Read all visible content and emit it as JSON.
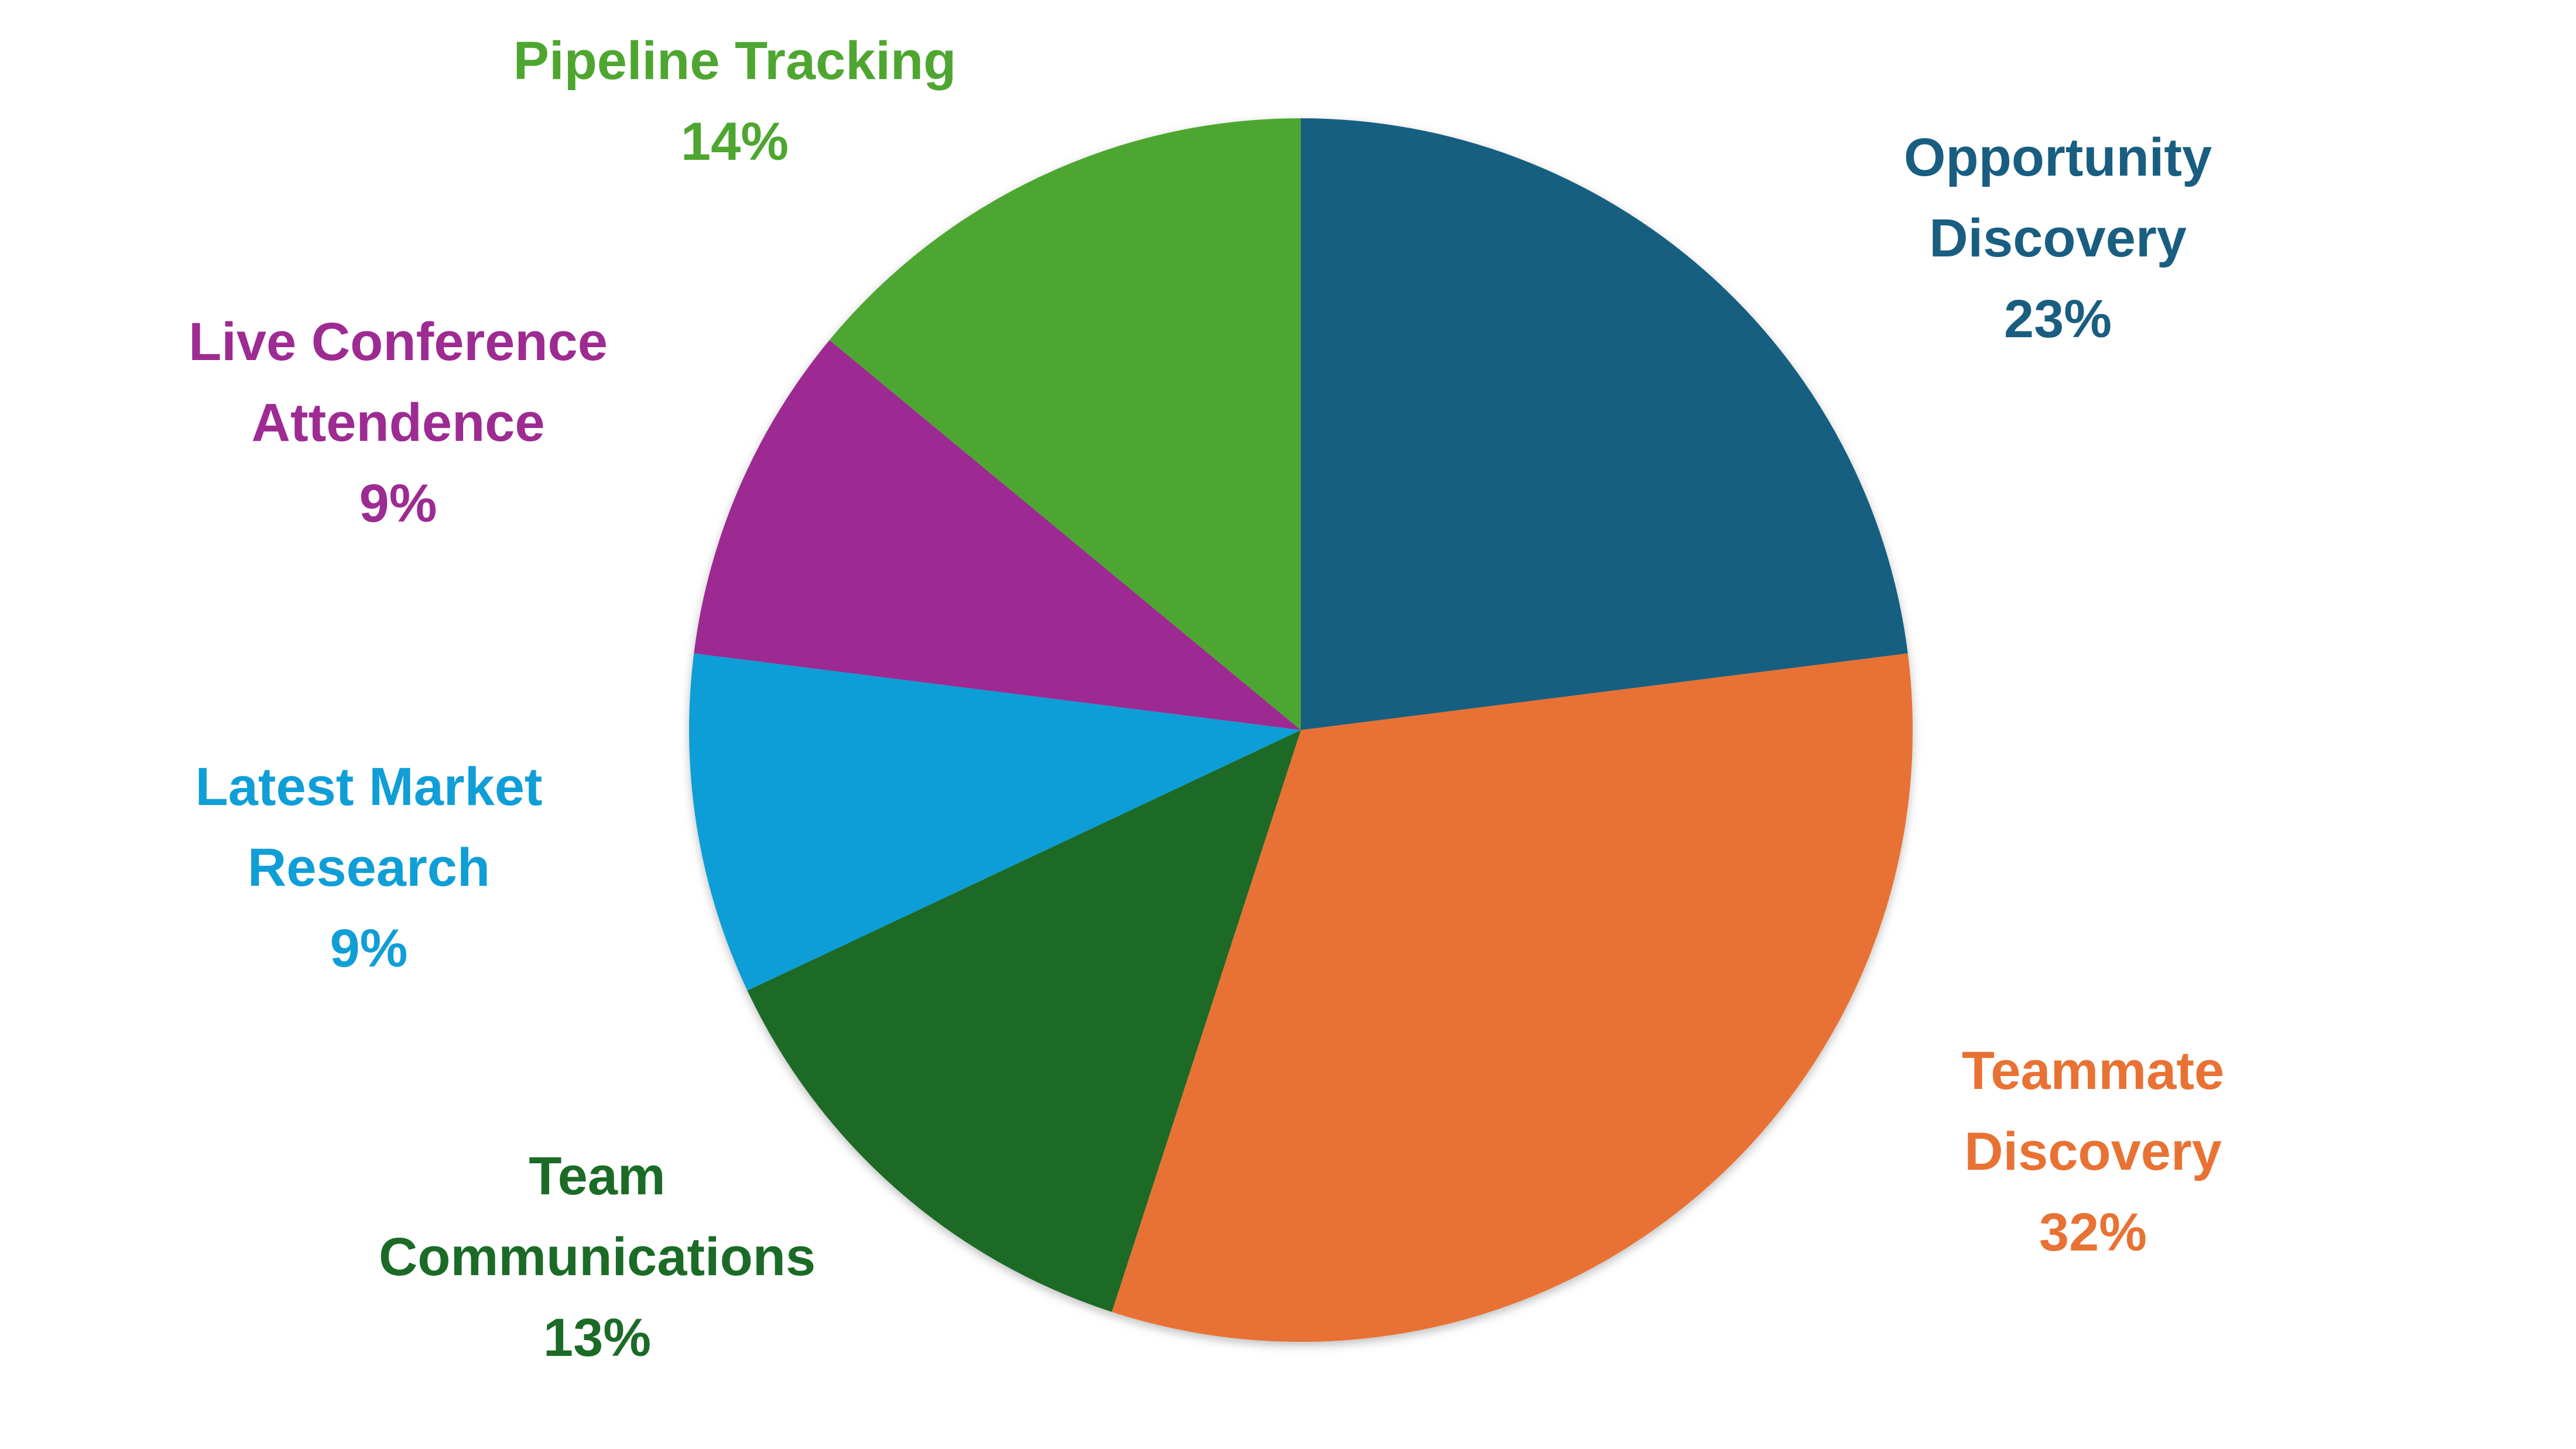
{
  "chart_data": {
    "type": "pie",
    "start_angle_deg": 0,
    "direction": "clockwise",
    "slices": [
      {
        "name": "Opportunity",
        "name_line2": "Discovery",
        "value": 23,
        "value_label": "23%",
        "color": "#195E80"
      },
      {
        "name": "Teammate",
        "name_line2": "Discovery",
        "value": 32,
        "value_label": "32%",
        "color": "#E87234"
      },
      {
        "name": "Team",
        "name_line2": "Communications",
        "value": 13,
        "value_label": "13%",
        "color": "#1B6B27"
      },
      {
        "name": "Latest Market",
        "name_line2": "Research",
        "value": 9,
        "value_label": "9%",
        "color": "#109ED7"
      },
      {
        "name": "Live Conference",
        "name_line2": "Attendence",
        "value": 9,
        "value_label": "9%",
        "color": "#9D2B92"
      },
      {
        "name": "Pipeline Tracking",
        "name_line2": "",
        "value": 14,
        "value_label": "14%",
        "color": "#4EA631"
      }
    ]
  }
}
